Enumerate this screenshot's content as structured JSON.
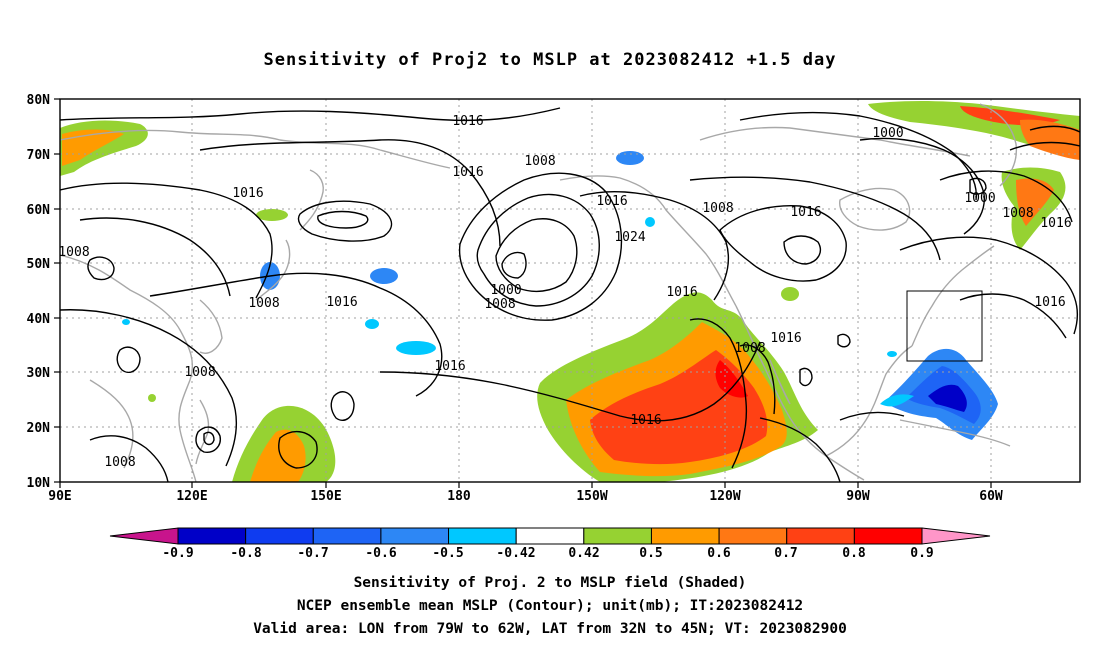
{
  "title": "Sensitivity of Proj2 to MSLP at 2023082412 +1.5 day",
  "lat_labels": [
    "80N",
    "70N",
    "60N",
    "50N",
    "40N",
    "30N",
    "20N",
    "10N"
  ],
  "lon_labels": [
    "90E",
    "120E",
    "150E",
    "180",
    "150W",
    "120W",
    "90W",
    "60W"
  ],
  "contour_labels": [
    "1016",
    "1008",
    "1016",
    "1016",
    "1000",
    "1000",
    "1008",
    "1016",
    "1016",
    "1016",
    "1008",
    "1024",
    "1000",
    "1008",
    "1016",
    "1008",
    "1008",
    "1016",
    "1016",
    "1008",
    "1016",
    "1016",
    "1016",
    "1008",
    "1008"
  ],
  "colorbar": {
    "labels": [
      "-0.9",
      "-0.8",
      "-0.7",
      "-0.6",
      "-0.5",
      "-0.42",
      "0.42",
      "0.5",
      "0.6",
      "0.7",
      "0.8",
      "0.9"
    ],
    "colors": [
      "#0000c8",
      "#0f3cf0",
      "#1e64f5",
      "#2d87f5",
      "#00c8ff",
      "#ffffff",
      "#96d232",
      "#ff9b00",
      "#ff7814",
      "#ff4114",
      "#ff0000"
    ],
    "min_arrow_color": "#c8148c",
    "max_arrow_color": "#ff96c8"
  },
  "captions": [
    "Sensitivity of Proj. 2 to MSLP field (Shaded)",
    "NCEP ensemble mean MSLP (Contour); unit(mb); IT:2023082412",
    "Valid area: LON from 79W to 62W, LAT from 32N to 45N; VT: 2023082900"
  ]
}
